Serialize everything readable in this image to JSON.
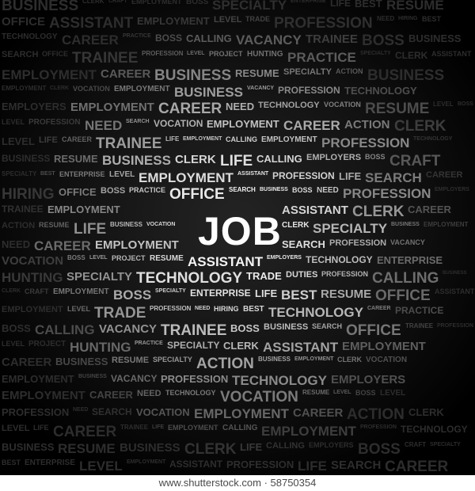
{
  "cloud": {
    "center_word": "JOB",
    "words": [
      "BUSINESS",
      "CLERK",
      "CRAFT",
      "EMPLOYMENT",
      "BOSS",
      "SPECIALTY",
      "ENTERPRISE",
      "LIFE",
      "BEST",
      "RESUME",
      "OFFICE",
      "ASSISTANT",
      "EMPLOYMENT",
      "LEVEL",
      "TRADE",
      "PROFESSION",
      "NEED",
      "HIRING",
      "BEST",
      "TECHNOLOGY",
      "CAREER",
      "PRACTICE",
      "BOSS",
      "CALLING",
      "VACANCY",
      "TRAINEE",
      "BOSS",
      "BUSINESS",
      "SEARCH",
      "OFFICE",
      "TRAINEE",
      "PROFESSION",
      "LEVEL",
      "PROJECT",
      "HUNTING",
      "PRACTICE",
      "SPECIALTY",
      "CLERK",
      "ASSISTANT",
      "EMPLOYMENT",
      "CAREER",
      "BUSINESS",
      "RESUME",
      "SPECIALTY",
      "ACTION",
      "BUSINESS",
      "EMPLOYMENT",
      "CLERK",
      "VOCATION",
      "EMPLOYMENT",
      "BUSINESS",
      "VACANCY",
      "PROFESSION",
      "TECHNOLOGY",
      "EMPLOYERS",
      "EMPLOYMENT",
      "CAREER",
      "NEED",
      "TECHNOLOGY",
      "VOCATION",
      "RESUME",
      "LEVEL",
      "BOSS",
      "LEVEL",
      "PROFESSION",
      "NEED",
      "SEARCH",
      "VOCATION",
      "EMPLOYMENT",
      "CAREER",
      "ACTION",
      "CLERK",
      "LEVEL",
      "LIFE",
      "CAREER",
      "TRAINEE",
      "LIFE",
      "EMPLOYMENT",
      "CALLING",
      "EMPLOYMENT",
      "PROFESSION",
      "TECHNOLOGY",
      "BUSINESS",
      "RESUME",
      "BUSINESS",
      "CLERK",
      "LIFE",
      "CALLING",
      "EMPLOYERS",
      "BOSS",
      "CRAFT",
      "SPECIALTY",
      "BEST",
      "ENTERPRISE",
      "LEVEL",
      "EMPLOYMENT",
      "ASSISTANT",
      "PROFESSION",
      "LIFE",
      "SEARCH",
      "CAREER",
      "HIRING",
      "OFFICE",
      "BOSS",
      "PRACTICE",
      "OFFICE",
      "SEARCH",
      "BUSINESS",
      "BOSS",
      "NEED",
      "PROFESSION",
      "EMPLOYERS",
      "TRAINEE",
      "EMPLOYMENT",
      "ASSISTANT",
      "CLERK",
      "CAREER",
      "ACTION",
      "RESUME",
      "LIFE",
      "BUSINESS",
      "VOCATION",
      "CLERK",
      "SPECIALTY",
      "BUSINESS",
      "EMPLOYMENT",
      "NEED",
      "CAREER",
      "EMPLOYMENT",
      "SEARCH",
      "PROFESSION",
      "VACANCY",
      "VOCATION",
      "BOSS",
      "LEVEL",
      "PROJECT",
      "RESUME",
      "ASSISTANT",
      "EMPLOYERS",
      "TECHNOLOGY",
      "ENTERPRISE",
      "HUNTING",
      "SPECIALTY",
      "TECHNOLOGY",
      "TRADE",
      "DUTIES",
      "PROFESSION",
      "CALLING"
    ]
  },
  "footer": {
    "text": "www.shutterstock.com · 58750354"
  }
}
